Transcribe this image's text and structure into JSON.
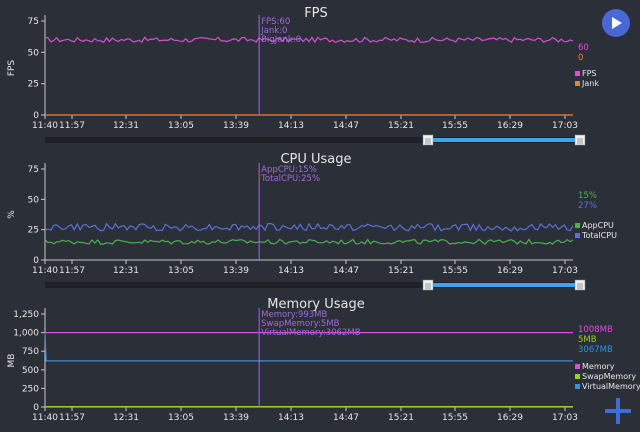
{
  "colors": {
    "background": "#2b2f38",
    "axis": "#c8c8c8",
    "text": "#e6e6e6",
    "fps": "#d94fd6",
    "jank": "#e8823a",
    "app_cpu": "#4caf50",
    "total_cpu": "#5b6fd6",
    "memory": "#d94fd6",
    "swap_memory": "#9acd32",
    "virtual_memory": "#3a8fd9",
    "cursor": "#a26bd6",
    "slider_track": "#1e2128",
    "slider_fill": "#3aa8e8",
    "play_button": "#4a67d8",
    "add_button": "#3a6fd9"
  },
  "icons": {
    "play": "play-icon",
    "add": "plus-icon"
  },
  "x_ticks": [
    "11:40",
    "11:57",
    "12:31",
    "13:05",
    "13:39",
    "14:13",
    "14:47",
    "15:21",
    "15:55",
    "16:29",
    "17:03"
  ],
  "slider_handle_glyph": "|||",
  "charts": {
    "fps": {
      "title": "FPS",
      "ylabel": "FPS",
      "y_ticks": [
        "75",
        "50",
        "25",
        "0"
      ],
      "tooltip": [
        "FPS:60",
        "Jank:0",
        "BigJank:0"
      ],
      "current": [
        "60",
        "0"
      ],
      "legend": [
        "FPS",
        "Jank"
      ]
    },
    "cpu": {
      "title": "CPU Usage",
      "ylabel": "%",
      "y_ticks": [
        "75",
        "50",
        "25",
        "0"
      ],
      "tooltip": [
        "AppCPU:15%",
        "TotalCPU:25%"
      ],
      "current": [
        "15%",
        "27%"
      ],
      "legend": [
        "AppCPU",
        "TotalCPU"
      ]
    },
    "memory": {
      "title": "Memory Usage",
      "ylabel": "MB",
      "y_ticks": [
        "1,250",
        "1,000",
        "750",
        "500",
        "250",
        "0"
      ],
      "tooltip": [
        "Memory:993MB",
        "SwapMemory:5MB",
        "VirtualMemory:3062MB"
      ],
      "current": [
        "1008MB",
        "5MB",
        "3067MB"
      ],
      "legend": [
        "Memory",
        "SwapMemory",
        "VirtualMemory"
      ]
    }
  },
  "chart_data": [
    {
      "type": "line",
      "title": "FPS",
      "ylabel": "FPS",
      "x_range": [
        "11:40",
        "17:03"
      ],
      "ylim": [
        0,
        75
      ],
      "grid": false,
      "legend_position": "right",
      "series": [
        {
          "name": "FPS",
          "base": 60,
          "jitter": 2,
          "last": 60
        },
        {
          "name": "Jank",
          "base": 0,
          "jitter": 0,
          "last": 0
        }
      ],
      "cursor": {
        "x": "13:51",
        "values": {
          "FPS": 60,
          "Jank": 0,
          "BigJank": 0
        }
      },
      "slider_range": [
        0.7,
        1.0
      ]
    },
    {
      "type": "line",
      "title": "CPU Usage",
      "ylabel": "%",
      "x_range": [
        "11:40",
        "17:03"
      ],
      "ylim": [
        0,
        75
      ],
      "grid": false,
      "legend_position": "right",
      "series": [
        {
          "name": "AppCPU",
          "base": 15,
          "jitter": 2,
          "last": 15
        },
        {
          "name": "TotalCPU",
          "base": 27,
          "jitter": 3,
          "last": 27
        }
      ],
      "cursor": {
        "x": "13:51",
        "values": {
          "AppCPU": 15,
          "TotalCPU": 25
        }
      },
      "slider_range": [
        0.7,
        1.0
      ]
    },
    {
      "type": "line",
      "title": "Memory Usage",
      "ylabel": "MB",
      "x_range": [
        "11:40",
        "17:03"
      ],
      "ylim": [
        0,
        1250
      ],
      "grid": false,
      "legend_position": "right",
      "series": [
        {
          "name": "Memory",
          "base": 1000,
          "jitter": 0,
          "last": 1008
        },
        {
          "name": "SwapMemory",
          "base": 5,
          "jitter": 0,
          "last": 5
        },
        {
          "name": "VirtualMemory",
          "base": 620,
          "jitter": 0,
          "last": 3067,
          "initial_spike": 1000
        }
      ],
      "cursor": {
        "x": "13:51",
        "values": {
          "Memory": 993,
          "SwapMemory": 5,
          "VirtualMemory": 3062
        }
      }
    }
  ]
}
